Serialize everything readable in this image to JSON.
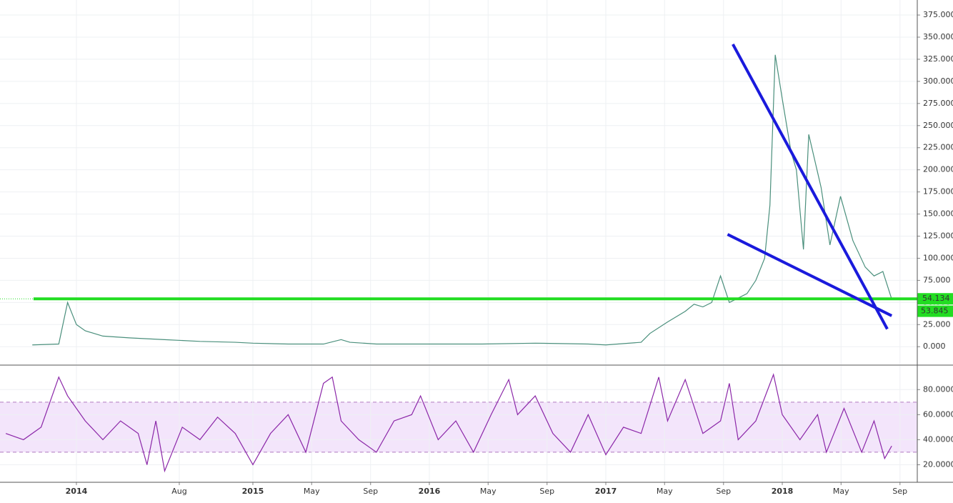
{
  "chart_data": [
    {
      "type": "line",
      "x": [
        2013.75,
        2013.9,
        2013.95,
        2014.0,
        2014.05,
        2014.15,
        2014.3,
        2014.5,
        2014.7,
        2014.9,
        2015.0,
        2015.2,
        2015.4,
        2015.5,
        2015.55,
        2015.7,
        2015.9,
        2016.0,
        2016.3,
        2016.6,
        2016.9,
        2017.0,
        2017.2,
        2017.25,
        2017.35,
        2017.45,
        2017.5,
        2017.55,
        2017.6,
        2017.65,
        2017.7,
        2017.75,
        2017.8,
        2017.85,
        2017.9,
        2017.93,
        2017.96,
        2018.0,
        2018.05,
        2018.08,
        2018.12,
        2018.15,
        2018.22,
        2018.27,
        2018.33,
        2018.4,
        2018.47,
        2018.52,
        2018.57,
        2018.62
      ],
      "series": [
        {
          "color": "#4a8f7c",
          "values": [
            2,
            3,
            50,
            25,
            18,
            12,
            10,
            8,
            6,
            5,
            4,
            3,
            3,
            8,
            5,
            3,
            3,
            3,
            3,
            4,
            3,
            2,
            5,
            15,
            28,
            40,
            48,
            45,
            50,
            80,
            50,
            55,
            60,
            75,
            100,
            160,
            330,
            280,
            220,
            200,
            110,
            240,
            180,
            115,
            170,
            120,
            90,
            80,
            85,
            53.845
          ]
        }
      ],
      "xlim": [
        2013.567,
        2018.765
      ],
      "xticks": [
        {
          "value": 2014,
          "label": "2014"
        },
        {
          "value": 2014.583,
          "label": "Aug"
        },
        {
          "value": 2015,
          "label": "2015"
        },
        {
          "value": 2015.333,
          "label": "May"
        },
        {
          "value": 2015.667,
          "label": "Sep"
        },
        {
          "value": 2016,
          "label": "2016"
        },
        {
          "value": 2016.333,
          "label": "May"
        },
        {
          "value": 2016.667,
          "label": "Sep"
        },
        {
          "value": 2017,
          "label": "2017"
        },
        {
          "value": 2017.333,
          "label": "May"
        },
        {
          "value": 2017.667,
          "label": "Sep"
        },
        {
          "value": 2018,
          "label": "2018"
        },
        {
          "value": 2018.333,
          "label": "May"
        },
        {
          "value": 2018.667,
          "label": "Sep"
        }
      ],
      "ylim": [
        -20,
        392
      ],
      "yticks": [
        {
          "value": 0,
          "label": "0.000"
        },
        {
          "value": 25,
          "label": "25.000"
        },
        {
          "value": 50,
          "label": "50.000"
        },
        {
          "value": 75,
          "label": "75.000"
        },
        {
          "value": 100,
          "label": "100.000"
        },
        {
          "value": 125,
          "label": "125.000"
        },
        {
          "value": 150,
          "label": "150.000"
        },
        {
          "value": 175,
          "label": "175.000"
        },
        {
          "value": 200,
          "label": "200.000"
        },
        {
          "value": 225,
          "label": "225.000"
        },
        {
          "value": 250,
          "label": "250.000"
        },
        {
          "value": 275,
          "label": "275.000"
        },
        {
          "value": 300,
          "label": "300.000"
        },
        {
          "value": 325,
          "label": "325.000"
        },
        {
          "value": 350,
          "label": "350.000"
        },
        {
          "value": 375,
          "label": "375.000"
        }
      ],
      "grid": true,
      "support": {
        "value": 54.134,
        "label": "54.134",
        "from": 2013.757,
        "color": "#22dd22"
      },
      "last_price": {
        "value": 53.845,
        "label": "53.845",
        "color": "#22dd22"
      },
      "trend_lines": [
        {
          "from": [
            2017.72,
            342
          ],
          "to": [
            2018.595,
            20
          ],
          "color": "#1a1adc"
        },
        {
          "from": [
            2017.69,
            127
          ],
          "to": [
            2018.62,
            35
          ],
          "color": "#1a1adc"
        }
      ]
    },
    {
      "type": "line",
      "x": [
        2013.6,
        2013.7,
        2013.8,
        2013.9,
        2013.95,
        2014.05,
        2014.15,
        2014.25,
        2014.35,
        2014.4,
        2014.45,
        2014.5,
        2014.6,
        2014.7,
        2014.8,
        2014.9,
        2015.0,
        2015.1,
        2015.2,
        2015.3,
        2015.4,
        2015.45,
        2015.5,
        2015.6,
        2015.7,
        2015.8,
        2015.9,
        2015.95,
        2016.05,
        2016.15,
        2016.25,
        2016.35,
        2016.45,
        2016.5,
        2016.6,
        2016.7,
        2016.8,
        2016.9,
        2017.0,
        2017.1,
        2017.2,
        2017.3,
        2017.35,
        2017.45,
        2017.55,
        2017.65,
        2017.7,
        2017.75,
        2017.85,
        2017.95,
        2018.0,
        2018.1,
        2018.2,
        2018.25,
        2018.35,
        2018.45,
        2018.52,
        2018.58,
        2018.62
      ],
      "series": [
        {
          "color": "#8b27a8",
          "values": [
            45,
            40,
            50,
            90,
            75,
            55,
            40,
            55,
            45,
            20,
            55,
            15,
            50,
            40,
            58,
            45,
            20,
            45,
            60,
            30,
            85,
            90,
            55,
            40,
            30,
            55,
            60,
            75,
            40,
            55,
            30,
            60,
            88,
            60,
            75,
            45,
            30,
            60,
            28,
            50,
            45,
            90,
            55,
            88,
            45,
            55,
            85,
            40,
            55,
            92,
            60,
            40,
            60,
            30,
            65,
            30,
            55,
            25,
            35
          ]
        }
      ],
      "xlim": [
        2013.567,
        2018.765
      ],
      "ylim": [
        6,
        99
      ],
      "yticks": [
        {
          "value": 20,
          "label": "20.0000"
        },
        {
          "value": 40,
          "label": "40.0000"
        },
        {
          "value": 60,
          "label": "60.0000"
        },
        {
          "value": 80,
          "label": "80.0000"
        }
      ],
      "band": [
        30,
        70
      ],
      "grid": true
    }
  ]
}
